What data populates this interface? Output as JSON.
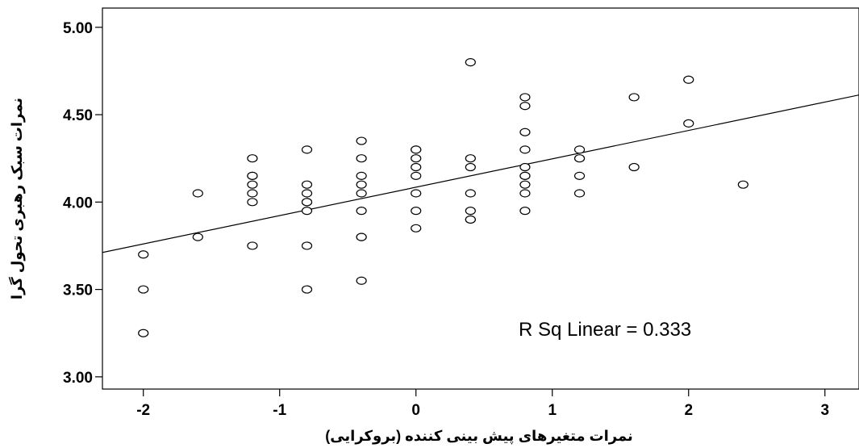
{
  "chart_data": {
    "type": "scatter",
    "title": "",
    "xlabel": "نمرات متغیرهای پیش بینی کننده  (بروکرایی)",
    "ylabel": "نمرات سبک رهبری تحول گرا",
    "xlim": [
      -2.3,
      3.25
    ],
    "ylim": [
      2.93,
      5.11
    ],
    "x_ticks": [
      -2,
      -1,
      0,
      1,
      2,
      3
    ],
    "y_ticks": [
      3.0,
      3.5,
      4.0,
      4.5,
      5.0
    ],
    "x_tick_labels": [
      "-2",
      "-1",
      "0",
      "1",
      "2",
      "3"
    ],
    "y_tick_labels": [
      "3.00",
      "3.50",
      "4.00",
      "4.50",
      "5.00"
    ],
    "grid": false,
    "annotation": "R Sq Linear = 0.333",
    "fit_line": {
      "type": "linear",
      "intercept": 4.085,
      "slope": 0.1624
    },
    "points": [
      [
        -2,
        3.7
      ],
      [
        -2,
        3.5
      ],
      [
        -2,
        3.25
      ],
      [
        -1.6,
        4.05
      ],
      [
        -1.6,
        3.8
      ],
      [
        -1.2,
        4.25
      ],
      [
        -1.2,
        4.15
      ],
      [
        -1.2,
        4.15
      ],
      [
        -1.2,
        4.1
      ],
      [
        -1.2,
        4.05
      ],
      [
        -1.2,
        4.0
      ],
      [
        -1.2,
        3.75
      ],
      [
        -0.8,
        4.3
      ],
      [
        -0.8,
        4.1
      ],
      [
        -0.8,
        4.05
      ],
      [
        -0.8,
        4.0
      ],
      [
        -0.8,
        4.0
      ],
      [
        -0.8,
        3.95
      ],
      [
        -0.8,
        3.75
      ],
      [
        -0.8,
        3.5
      ],
      [
        -0.4,
        4.35
      ],
      [
        -0.4,
        4.25
      ],
      [
        -0.4,
        4.15
      ],
      [
        -0.4,
        4.1
      ],
      [
        -0.4,
        4.05
      ],
      [
        -0.4,
        3.95
      ],
      [
        -0.4,
        3.8
      ],
      [
        -0.4,
        3.8
      ],
      [
        -0.4,
        3.55
      ],
      [
        0,
        4.3
      ],
      [
        0,
        4.3
      ],
      [
        0,
        4.25
      ],
      [
        0,
        4.2
      ],
      [
        0,
        4.15
      ],
      [
        0,
        4.05
      ],
      [
        0,
        3.95
      ],
      [
        0,
        3.85
      ],
      [
        0.4,
        4.8
      ],
      [
        0.4,
        4.25
      ],
      [
        0.4,
        4.2
      ],
      [
        0.4,
        4.05
      ],
      [
        0.4,
        3.95
      ],
      [
        0.4,
        3.9
      ],
      [
        0.4,
        3.9
      ],
      [
        0.8,
        4.6
      ],
      [
        0.8,
        4.55
      ],
      [
        0.8,
        4.4
      ],
      [
        0.8,
        4.3
      ],
      [
        0.8,
        4.2
      ],
      [
        0.8,
        4.15
      ],
      [
        0.8,
        4.15
      ],
      [
        0.8,
        4.1
      ],
      [
        0.8,
        4.05
      ],
      [
        0.8,
        3.95
      ],
      [
        1.2,
        4.3
      ],
      [
        1.2,
        4.25
      ],
      [
        1.2,
        4.15
      ],
      [
        1.2,
        4.05
      ],
      [
        1.6,
        4.6
      ],
      [
        1.6,
        4.2
      ],
      [
        2.0,
        4.7
      ],
      [
        2.0,
        4.45
      ],
      [
        2.4,
        4.1
      ]
    ]
  }
}
